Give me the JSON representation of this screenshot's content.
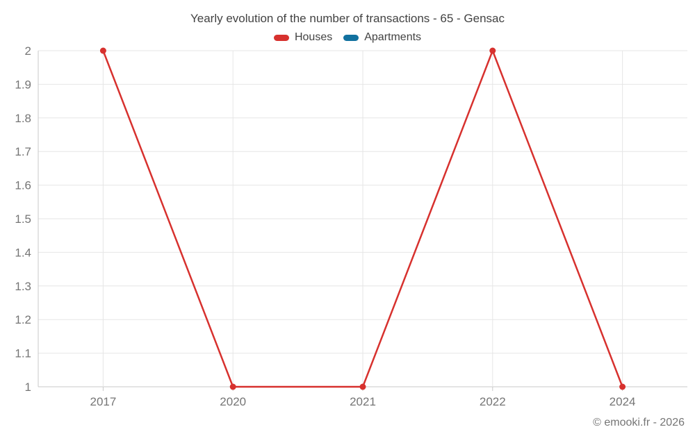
{
  "header": {
    "title": "Yearly evolution of the number of transactions - 65 - Gensac"
  },
  "legend": {
    "items": [
      {
        "label": "Houses",
        "color": "#d7312e"
      },
      {
        "label": "Apartments",
        "color": "#11719f"
      }
    ]
  },
  "footer": {
    "copyright": "© emooki.fr - 2026"
  },
  "colors": {
    "grid": "#e6e6e6",
    "axis": "#c9c9c9",
    "tick_label": "#757575",
    "title_text": "#424242",
    "houses": "#d7312e",
    "apartments": "#11719f"
  },
  "chart_data": {
    "type": "line",
    "title": "Yearly evolution of the number of transactions - 65 - Gensac",
    "categories": [
      "2017",
      "2020",
      "2021",
      "2022",
      "2024"
    ],
    "series": [
      {
        "name": "Houses",
        "color": "#d7312e",
        "values": [
          2,
          1,
          1,
          2,
          1
        ]
      },
      {
        "name": "Apartments",
        "color": "#11719f",
        "values": []
      }
    ],
    "xlabel": "",
    "ylabel": "",
    "ylim": [
      1,
      2
    ],
    "ytick_labels": [
      "1",
      "1.1",
      "1.2",
      "1.3",
      "1.4",
      "1.5",
      "1.6",
      "1.7",
      "1.8",
      "1.9",
      "2"
    ],
    "grid": true,
    "legend_position": "top"
  }
}
